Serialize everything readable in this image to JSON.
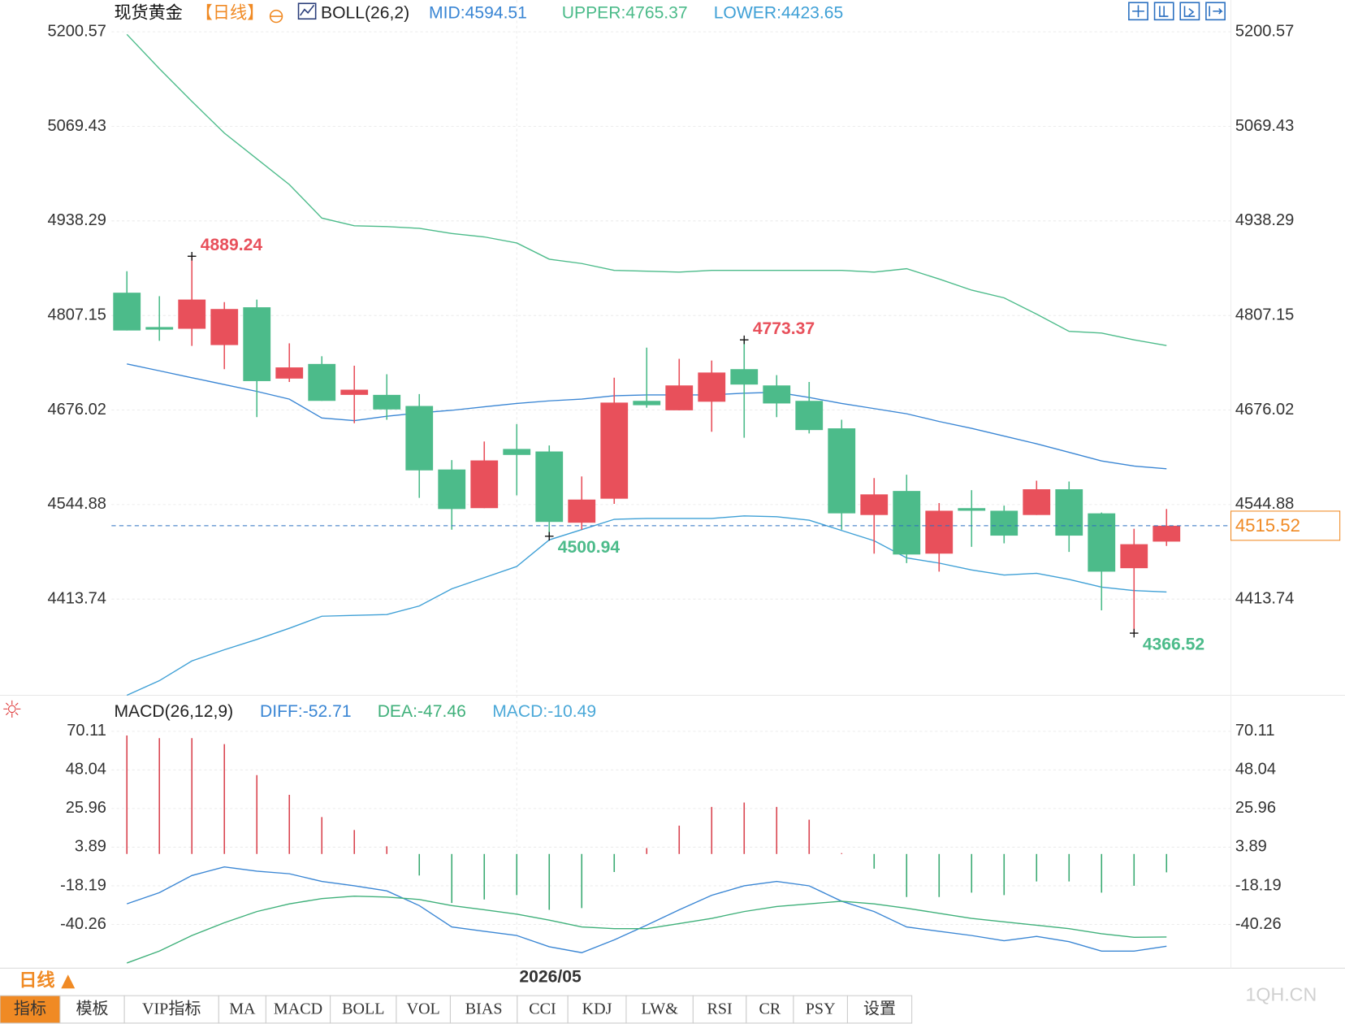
{
  "chart_data": [
    {
      "type": "candlestick",
      "title": "现货黄金",
      "period_label": "【日线】",
      "indicator": "BOLL(26,2)",
      "categories": [
        null,
        null,
        null,
        null,
        null,
        null,
        null,
        null,
        null,
        null,
        null,
        null,
        "2026/05",
        null,
        null,
        null,
        null,
        null,
        null,
        null,
        null,
        null,
        null,
        null,
        null,
        null,
        null,
        null,
        null,
        null,
        null,
        null,
        null
      ],
      "open": [
        4838.7,
        4791.1,
        4788.7,
        4766.1,
        4818.5,
        4719.6,
        4739.9,
        4697.0,
        4697.0,
        4681.6,
        4593.5,
        4539.9,
        4622.0,
        4618.5,
        4519.7,
        4553.0,
        4688.7,
        4675.6,
        4687.5,
        4732.7,
        4710.1,
        4688.7,
        4650.6,
        4530.4,
        4563.7,
        4476.8,
        4539.9,
        4536.3,
        4530.4,
        4566.1,
        4532.7,
        4456.6,
        4493.5
      ],
      "high": [
        4868.5,
        4833.9,
        4889.24,
        4825.6,
        4829.2,
        4768.5,
        4750.6,
        4737.5,
        4725.6,
        4698.2,
        4606.6,
        4632.3,
        4656.5,
        4626.8,
        4583.9,
        4720.8,
        4762.5,
        4747.0,
        4744.6,
        4773.37,
        4724.4,
        4714.9,
        4662.5,
        4581.6,
        4586.3,
        4547.0,
        4564.9,
        4543.4,
        4578.0,
        4576.8,
        4533.9,
        4511.3,
        4538.7
      ],
      "low": [
        4786.3,
        4772.0,
        4764.9,
        4732.7,
        4666.1,
        4714.9,
        4688.7,
        4657.7,
        4662.5,
        4554.2,
        4510.1,
        4539.9,
        4557.7,
        4500.94,
        4510.1,
        4545.8,
        4679.2,
        4675.6,
        4645.8,
        4637.5,
        4666.1,
        4643.5,
        4510.1,
        4476.8,
        4463.7,
        4451.8,
        4486.3,
        4491.1,
        4530.4,
        4479.2,
        4398.2,
        4366.52,
        4487.5
      ],
      "close": [
        4786.3,
        4787.5,
        4829.2,
        4816.1,
        4716.1,
        4735.1,
        4688.7,
        4704.2,
        4676.8,
        4592.3,
        4538.7,
        4606.1,
        4613.7,
        4520.8,
        4551.8,
        4686.3,
        4682.7,
        4710.1,
        4728.0,
        4711.3,
        4685.1,
        4648.2,
        4532.7,
        4559.0,
        4475.6,
        4536.3,
        4536.3,
        4501.8,
        4566.1,
        4501.8,
        4451.8,
        4489.9,
        4515.52
      ],
      "up_color": "#e8505b",
      "down_color": "#4cbb8a",
      "series": [
        {
          "name": "MID:4594.51",
          "color": "#3a86d4",
          "values": [
            4739.9,
            4730.4,
            4720.8,
            4711.3,
            4701.8,
            4691.1,
            4664.9,
            4661.3,
            4667.3,
            4672.0,
            4675.6,
            4680.4,
            4685.1,
            4688.7,
            4691.1,
            4695.8,
            4697.0,
            4697.0,
            4697.0,
            4699.4,
            4700.6,
            4693.4,
            4685.1,
            4678.0,
            4670.8,
            4660.1,
            4650.6,
            4639.9,
            4629.2,
            4617.3,
            4605.4,
            4598.3,
            4594.51
          ]
        },
        {
          "name": "UPPER:4765.37",
          "color": "#4cbb8a",
          "values": [
            5197.0,
            5149.4,
            5104.1,
            5060.1,
            5024.4,
            4988.7,
            4942.2,
            4931.6,
            4930.4,
            4928.0,
            4920.8,
            4916.1,
            4907.7,
            4885.2,
            4879.2,
            4869.7,
            4868.5,
            4867.3,
            4869.7,
            4869.7,
            4869.7,
            4869.7,
            4869.7,
            4867.3,
            4872.0,
            4857.7,
            4842.3,
            4831.6,
            4809.0,
            4785.1,
            4782.8,
            4773.3,
            4765.37
          ]
        },
        {
          "name": "LOWER:4423.65",
          "color": "#3fa0d6",
          "values": [
            4280.4,
            4300.6,
            4328.0,
            4343.5,
            4357.8,
            4373.3,
            4390.0,
            4391.2,
            4392.3,
            4404.2,
            4428.0,
            4443.5,
            4459.0,
            4495.9,
            4510.1,
            4524.4,
            4525.6,
            4525.6,
            4525.6,
            4529.2,
            4528.0,
            4523.2,
            4508.9,
            4494.7,
            4470.9,
            4463.7,
            4454.2,
            4447.1,
            4449.5,
            4441.1,
            4430.4,
            4425.6,
            4423.65
          ]
        }
      ],
      "annotations": [
        4889.24,
        4773.37,
        4500.94,
        4366.52
      ],
      "last_price": 4515.52,
      "ylim": [
        4280.4,
        5238.7
      ],
      "yticks": [
        5200.57,
        5069.43,
        4938.29,
        4807.15,
        4676.02,
        4544.88,
        4413.74
      ],
      "grid": true
    },
    {
      "type": "macd",
      "title": "MACD(26,12,9)",
      "histogram": {
        "up_color": "#d9434e",
        "down_color": "#3aaa72",
        "values": [
          67.7,
          66.2,
          66.2,
          62.8,
          45.1,
          33.8,
          21.1,
          13.7,
          4.4,
          -12.3,
          -28.0,
          -26.0,
          -23.5,
          -31.9,
          -30.9,
          -10.3,
          3.4,
          16.2,
          26.9,
          29.4,
          26.9,
          19.6,
          0.5,
          -8.4,
          -24.6,
          -24.6,
          -22.1,
          -23.5,
          -15.7,
          -15.7,
          -22.1,
          -18.2,
          -10.49
        ]
      },
      "series": [
        {
          "name": "DIFF:-52.71",
          "color": "#3a86d4",
          "values": [
            -28.5,
            -22.1,
            -12.3,
            -7.4,
            -9.8,
            -11.3,
            -15.7,
            -18.2,
            -21.1,
            -29.5,
            -41.7,
            -44.2,
            -46.6,
            -53.0,
            -56.4,
            -49.1,
            -40.7,
            -31.9,
            -23.6,
            -18.2,
            -15.7,
            -18.2,
            -27.0,
            -32.9,
            -41.7,
            -44.2,
            -46.6,
            -49.6,
            -47.1,
            -50.1,
            -55.5,
            -55.5,
            -52.71
          ]
        },
        {
          "name": "DEA:-47.46",
          "color": "#3fb07a",
          "values": [
            -62.3,
            -55.5,
            -46.6,
            -39.3,
            -32.9,
            -28.5,
            -25.5,
            -24.1,
            -24.6,
            -26.0,
            -29.5,
            -31.9,
            -34.4,
            -37.8,
            -41.7,
            -42.7,
            -42.7,
            -39.8,
            -36.8,
            -32.9,
            -30.0,
            -28.5,
            -27.0,
            -28.5,
            -31.0,
            -33.9,
            -36.8,
            -38.8,
            -40.7,
            -42.7,
            -45.6,
            -47.6,
            -47.46
          ]
        }
      ],
      "hist_label": "MACD:-10.49",
      "hist_label_color": "#4aa8d8",
      "ylim": [
        -63.8,
        76.0
      ],
      "yticks": [
        70.11,
        48.04,
        25.96,
        3.89,
        -18.19,
        -40.26
      ],
      "grid": true
    }
  ],
  "period_tab": "日线 ▲",
  "tabs": [
    "指标",
    "模板",
    "VIP指标",
    "MA",
    "MACD",
    "BOLL",
    "VOL",
    "BIAS",
    "CCI",
    "KDJ",
    "LW&",
    "RSI",
    "CR",
    "PSY",
    "设置"
  ],
  "watermark": "1QH.CN"
}
